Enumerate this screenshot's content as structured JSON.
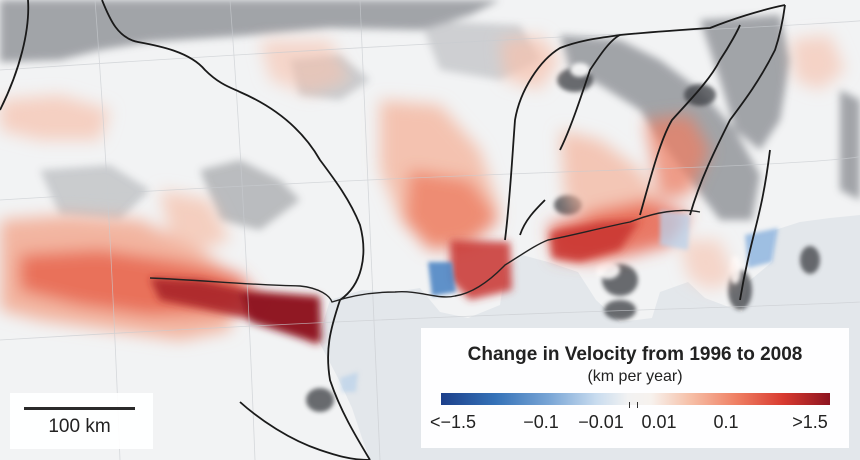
{
  "scale_bar": {
    "label": "100 km"
  },
  "legend": {
    "title": "Change in Velocity from 1996 to 2008",
    "subtitle": "(km per year)",
    "ticks": [
      "<−1.5",
      "−0.1",
      "−0.01",
      "0.01",
      "0.1",
      ">1.5"
    ],
    "colors": {
      "strong_decrease": "#1c3f8a",
      "no_change": "#f2f2f2",
      "strong_increase": "#8d1420"
    }
  },
  "map": {
    "ocean_color": "#e4e8ec",
    "land_color": "#f2f3f4",
    "terrain_shade_color": "#8e9196",
    "boundary_color": "#1a1a1a"
  }
}
